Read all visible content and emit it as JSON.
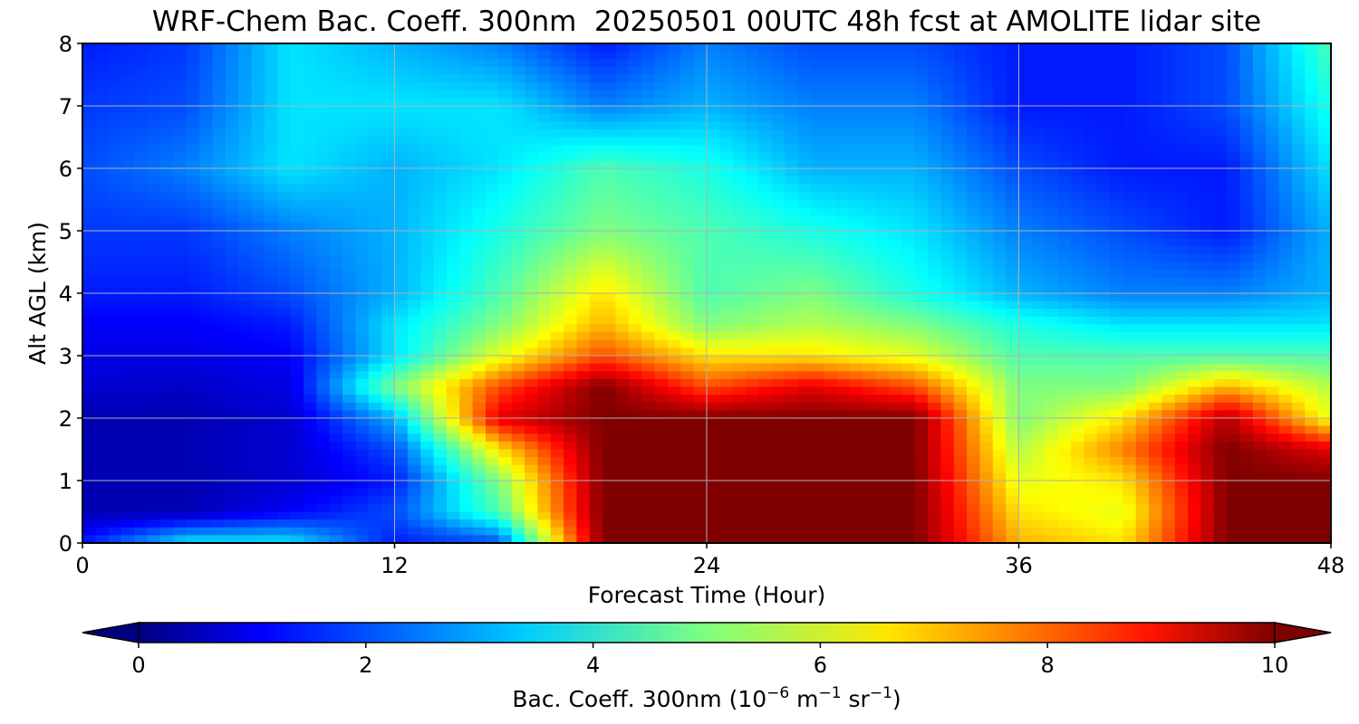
{
  "chart_data": {
    "type": "heatmap",
    "title": "WRF-Chem Bac. Coeff. 300nm  20250501 00UTC 48h fcst at AMOLITE lidar site",
    "xlabel": "Forecast Time (Hour)",
    "ylabel": "Alt AGL (km)",
    "xlim": [
      0,
      48
    ],
    "ylim": [
      0,
      8
    ],
    "x_ticks": [
      "0",
      "12",
      "24",
      "36",
      "48"
    ],
    "x_tick_values": [
      0,
      12,
      24,
      36,
      48
    ],
    "y_ticks": [
      "0",
      "1",
      "2",
      "3",
      "4",
      "5",
      "6",
      "7",
      "8"
    ],
    "y_tick_values": [
      0,
      1,
      2,
      3,
      4,
      5,
      6,
      7,
      8
    ],
    "grid": true,
    "colormap": "jet",
    "colorbar": {
      "orientation": "horizontal",
      "placement": "bottom",
      "range": [
        0,
        10
      ],
      "ticks": [
        "0",
        "2",
        "4",
        "6",
        "8",
        "10"
      ],
      "tick_values": [
        0,
        2,
        4,
        6,
        8,
        10
      ],
      "extend": "both",
      "label_main": "Bac. Coeff. 300nm  (10",
      "label_exp1": "−6",
      "label_mid1": " m",
      "label_exp2": "−1",
      "label_mid2": " sr",
      "label_exp3": "−1",
      "label_end": ")"
    },
    "x": [
      0,
      4,
      8,
      12,
      16,
      20,
      24,
      28,
      32,
      36,
      40,
      44,
      48
    ],
    "y": [
      0,
      0.5,
      1,
      1.5,
      2,
      2.5,
      3,
      3.5,
      4,
      5,
      6,
      7,
      8
    ],
    "z": [
      [
        1.5,
        3.5,
        3.5,
        1.5,
        2.0,
        10,
        10,
        10,
        10,
        7.0,
        6.5,
        10,
        10
      ],
      [
        0.5,
        0.5,
        1.2,
        2.0,
        4.5,
        10,
        10,
        10,
        10,
        6.5,
        6.0,
        10,
        10
      ],
      [
        0.5,
        0.5,
        0.8,
        1.5,
        5.0,
        10,
        10,
        10,
        10,
        6.0,
        6.5,
        10,
        10
      ],
      [
        0.5,
        0.5,
        0.8,
        2.0,
        6.5,
        10,
        10,
        10,
        10,
        5.5,
        7.5,
        10,
        9.0
      ],
      [
        0.5,
        0.5,
        0.8,
        3.0,
        9.0,
        10,
        10,
        10,
        10,
        5.0,
        6.5,
        9.5,
        6.0
      ],
      [
        0.8,
        0.7,
        1.0,
        5.0,
        8.0,
        10,
        8.0,
        9.0,
        8.0,
        5.0,
        5.0,
        7.0,
        5.5
      ],
      [
        1.0,
        1.0,
        1.2,
        3.5,
        6.0,
        8.0,
        6.5,
        6.5,
        6.0,
        4.5,
        4.5,
        4.5,
        4.5
      ],
      [
        1.2,
        1.2,
        1.5,
        3.5,
        5.0,
        7.0,
        5.0,
        5.5,
        5.0,
        4.0,
        3.5,
        3.5,
        3.5
      ],
      [
        1.5,
        1.5,
        2.0,
        3.0,
        4.5,
        6.5,
        4.5,
        5.0,
        4.0,
        3.0,
        2.5,
        2.5,
        3.0
      ],
      [
        1.8,
        1.8,
        2.5,
        3.0,
        4.0,
        5.0,
        4.5,
        4.0,
        3.5,
        2.5,
        2.0,
        1.5,
        3.0
      ],
      [
        2.0,
        2.5,
        3.5,
        3.0,
        3.5,
        4.5,
        4.0,
        3.0,
        3.0,
        2.0,
        1.5,
        1.5,
        3.5
      ],
      [
        1.8,
        2.0,
        3.5,
        3.5,
        3.5,
        2.5,
        3.0,
        2.5,
        2.5,
        1.5,
        1.5,
        2.0,
        4.0
      ],
      [
        1.5,
        1.8,
        3.5,
        3.0,
        2.5,
        1.5,
        2.5,
        2.0,
        2.0,
        1.5,
        1.5,
        2.0,
        4.5
      ]
    ]
  }
}
